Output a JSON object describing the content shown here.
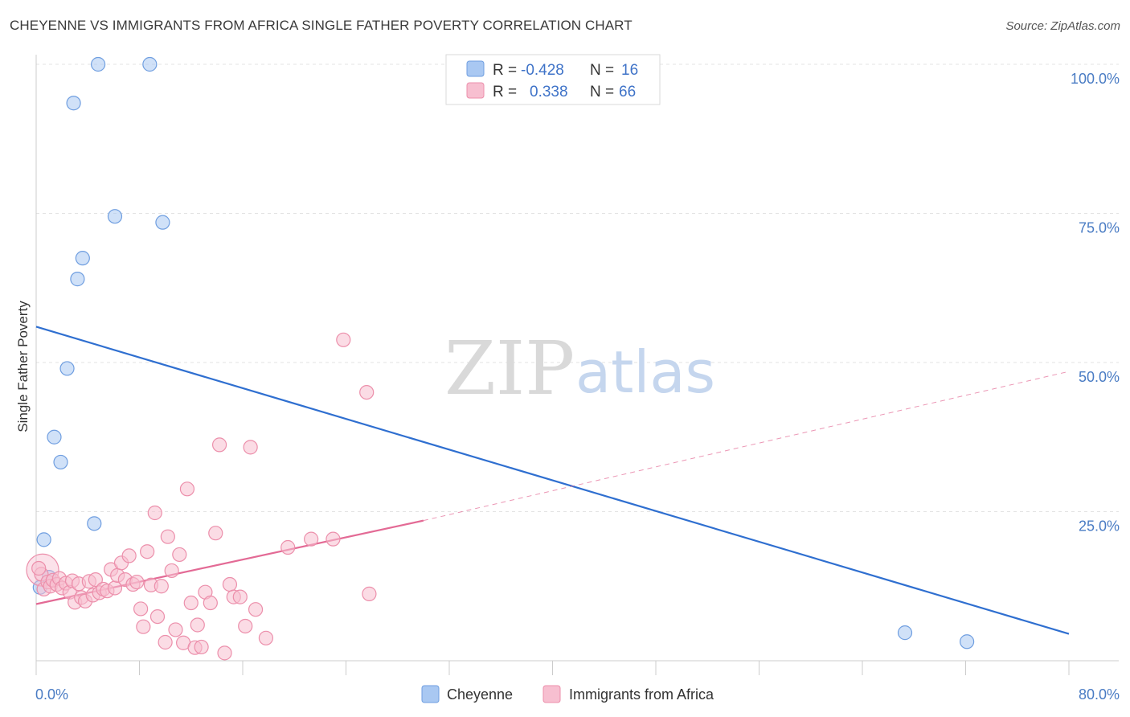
{
  "header": {
    "title": "CHEYENNE VS IMMIGRANTS FROM AFRICA SINGLE FATHER POVERTY CORRELATION CHART",
    "source": "Source: ZipAtlas.com"
  },
  "watermark": {
    "zip": "ZIP",
    "atlas": "atlas"
  },
  "legend": {
    "rows": [
      {
        "r_label": "R =",
        "r_value": "-0.428",
        "n_label": "N =",
        "n_value": "16",
        "color": "#a9c8f2",
        "stroke": "#6f9ee0"
      },
      {
        "r_label": "R =",
        "r_value": "0.338",
        "n_label": "N =",
        "n_value": "66",
        "color": "#f7bfd0",
        "stroke": "#ec8fab"
      }
    ]
  },
  "bottom_legend": {
    "items": [
      {
        "label": "Cheyenne",
        "color": "#a9c8f2",
        "stroke": "#6f9ee0"
      },
      {
        "label": "Immigrants from Africa",
        "color": "#f7bfd0",
        "stroke": "#ec8fab"
      }
    ]
  },
  "chart_data": {
    "type": "scatter",
    "title": "CHEYENNE VS IMMIGRANTS FROM AFRICA SINGLE FATHER POVERTY CORRELATION CHART",
    "xlabel": "",
    "ylabel": "Single Father Poverty",
    "xlim": [
      0,
      80
    ],
    "ylim": [
      0,
      100
    ],
    "x_tick_labels": [
      "0.0%",
      "80.0%"
    ],
    "y_ticks": [
      25,
      50,
      75,
      100
    ],
    "y_tick_labels": [
      "25.0%",
      "50.0%",
      "75.0%",
      "100.0%"
    ],
    "grid": true,
    "series": [
      {
        "name": "Cheyenne",
        "color": "#a9c8f2",
        "stroke": "#6f9ee0",
        "line_color": "#2f6fd0",
        "trend": {
          "x": [
            0,
            80
          ],
          "y": [
            56.0,
            4.5
          ]
        },
        "points": [
          {
            "x": 4.8,
            "y": 100
          },
          {
            "x": 8.8,
            "y": 100
          },
          {
            "x": 2.9,
            "y": 93.5
          },
          {
            "x": 6.1,
            "y": 74.5
          },
          {
            "x": 9.8,
            "y": 73.5
          },
          {
            "x": 3.6,
            "y": 67.5
          },
          {
            "x": 3.2,
            "y": 64.0
          },
          {
            "x": 2.4,
            "y": 49.0
          },
          {
            "x": 1.4,
            "y": 37.5
          },
          {
            "x": 1.9,
            "y": 33.3
          },
          {
            "x": 4.5,
            "y": 23.0
          },
          {
            "x": 0.6,
            "y": 20.3
          },
          {
            "x": 1.0,
            "y": 14.0
          },
          {
            "x": 0.3,
            "y": 12.3
          },
          {
            "x": 67.3,
            "y": 4.7
          },
          {
            "x": 72.1,
            "y": 3.2
          }
        ]
      },
      {
        "name": "Immigrants from Africa",
        "color": "#f7bfd0",
        "stroke": "#ec8fab",
        "line_color": "#e36a95",
        "trend": {
          "x": [
            0,
            30
          ],
          "y": [
            9.5,
            23.5
          ]
        },
        "trend_extension": {
          "x": [
            30,
            80
          ],
          "y": [
            23.5,
            48.5
          ]
        },
        "points": [
          {
            "x": 0.4,
            "y": 14.5
          },
          {
            "x": 0.6,
            "y": 12.0
          },
          {
            "x": 0.9,
            "y": 13.2
          },
          {
            "x": 1.1,
            "y": 12.5
          },
          {
            "x": 1.3,
            "y": 13.5
          },
          {
            "x": 1.6,
            "y": 12.8
          },
          {
            "x": 1.8,
            "y": 13.8
          },
          {
            "x": 2.0,
            "y": 12.2
          },
          {
            "x": 2.3,
            "y": 13.0
          },
          {
            "x": 2.6,
            "y": 11.5
          },
          {
            "x": 2.8,
            "y": 13.4
          },
          {
            "x": 3.0,
            "y": 9.8
          },
          {
            "x": 3.3,
            "y": 12.9
          },
          {
            "x": 3.5,
            "y": 10.6
          },
          {
            "x": 3.8,
            "y": 10.0
          },
          {
            "x": 4.1,
            "y": 13.3
          },
          {
            "x": 4.4,
            "y": 11.0
          },
          {
            "x": 4.6,
            "y": 13.6
          },
          {
            "x": 4.9,
            "y": 11.4
          },
          {
            "x": 5.2,
            "y": 12.0
          },
          {
            "x": 5.5,
            "y": 11.7
          },
          {
            "x": 5.8,
            "y": 15.3
          },
          {
            "x": 6.1,
            "y": 12.2
          },
          {
            "x": 6.3,
            "y": 14.3
          },
          {
            "x": 6.6,
            "y": 16.4
          },
          {
            "x": 6.9,
            "y": 13.6
          },
          {
            "x": 7.2,
            "y": 17.6
          },
          {
            "x": 7.5,
            "y": 12.8
          },
          {
            "x": 7.8,
            "y": 13.2
          },
          {
            "x": 8.1,
            "y": 8.7
          },
          {
            "x": 8.3,
            "y": 5.7
          },
          {
            "x": 8.6,
            "y": 18.3
          },
          {
            "x": 8.9,
            "y": 12.7
          },
          {
            "x": 9.2,
            "y": 24.8
          },
          {
            "x": 9.4,
            "y": 7.4
          },
          {
            "x": 9.7,
            "y": 12.5
          },
          {
            "x": 10.0,
            "y": 3.1
          },
          {
            "x": 10.2,
            "y": 20.8
          },
          {
            "x": 10.5,
            "y": 15.1
          },
          {
            "x": 10.8,
            "y": 5.2
          },
          {
            "x": 11.1,
            "y": 17.8
          },
          {
            "x": 11.4,
            "y": 3.0
          },
          {
            "x": 11.7,
            "y": 28.8
          },
          {
            "x": 12.0,
            "y": 9.7
          },
          {
            "x": 12.3,
            "y": 2.2
          },
          {
            "x": 12.5,
            "y": 6.0
          },
          {
            "x": 12.8,
            "y": 2.3
          },
          {
            "x": 13.1,
            "y": 11.5
          },
          {
            "x": 13.5,
            "y": 9.7
          },
          {
            "x": 13.9,
            "y": 21.4
          },
          {
            "x": 14.2,
            "y": 36.2
          },
          {
            "x": 14.6,
            "y": 1.3
          },
          {
            "x": 15.0,
            "y": 12.8
          },
          {
            "x": 15.3,
            "y": 10.7
          },
          {
            "x": 15.8,
            "y": 10.7
          },
          {
            "x": 16.2,
            "y": 5.8
          },
          {
            "x": 16.6,
            "y": 35.8
          },
          {
            "x": 17.0,
            "y": 8.6
          },
          {
            "x": 17.8,
            "y": 3.8
          },
          {
            "x": 19.5,
            "y": 19.0
          },
          {
            "x": 21.3,
            "y": 20.4
          },
          {
            "x": 23.0,
            "y": 20.4
          },
          {
            "x": 23.8,
            "y": 53.8
          },
          {
            "x": 25.8,
            "y": 11.2
          },
          {
            "x": 25.6,
            "y": 45.0
          },
          {
            "x": 0.2,
            "y": 15.5
          }
        ]
      }
    ]
  }
}
